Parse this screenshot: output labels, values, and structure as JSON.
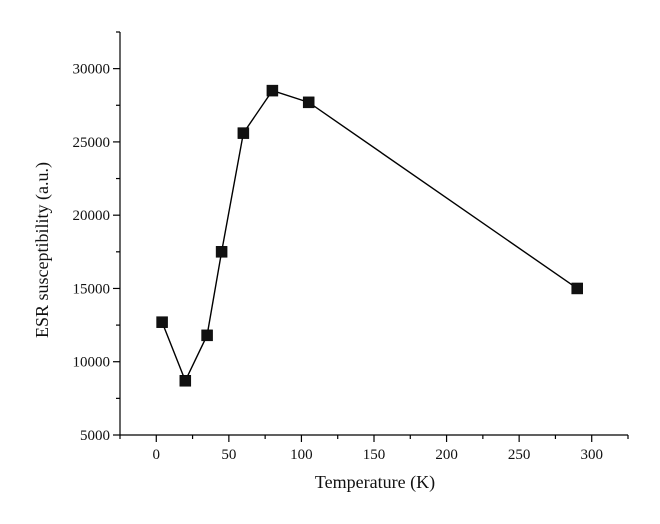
{
  "chart_data": {
    "type": "line",
    "title": "",
    "xlabel": "Temperature (K)",
    "ylabel": "ESR susceptibility (a.u.)",
    "xlim": [
      -25,
      325
    ],
    "ylim": [
      5000,
      32500
    ],
    "xticks": [
      0,
      50,
      100,
      150,
      200,
      250,
      300
    ],
    "yticks": [
      5000,
      10000,
      15000,
      20000,
      25000,
      30000
    ],
    "grid": false,
    "marker": "square",
    "series": [
      {
        "x": [
          4,
          20,
          35,
          45,
          60,
          80,
          105,
          290
        ],
        "y": [
          12700,
          8700,
          11800,
          17500,
          25600,
          28500,
          27700,
          15000
        ]
      }
    ]
  }
}
